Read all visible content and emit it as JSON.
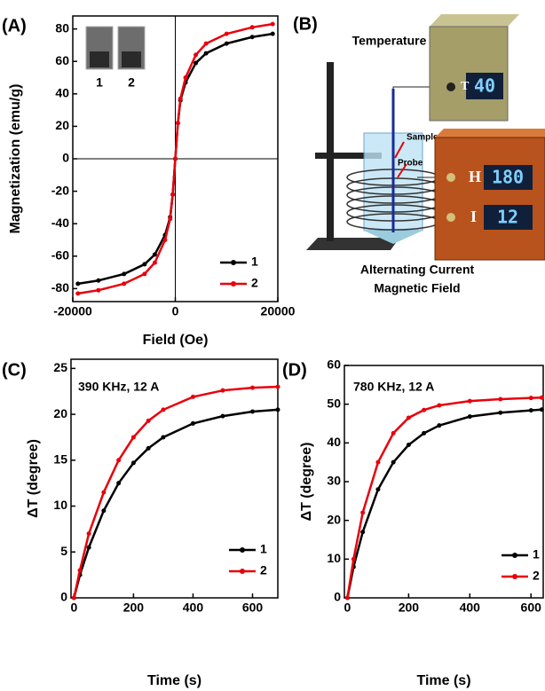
{
  "chart_data": [
    {
      "type": "line",
      "label": "(A)",
      "xlabel": "Field (Oe)",
      "ylabel": "Magnetization (emu/g)",
      "x": [
        -19000,
        -15000,
        -10000,
        -6000,
        -4000,
        -2000,
        -1000,
        -500,
        0,
        500,
        1000,
        2000,
        4000,
        6000,
        10000,
        15000,
        19000
      ],
      "series": [
        {
          "name": "1",
          "color": "#000000",
          "values": [
            -77,
            -75,
            -71,
            -65,
            -59,
            -47,
            -36,
            -22,
            0,
            22,
            36,
            47,
            59,
            65,
            71,
            75,
            77
          ]
        },
        {
          "name": "2",
          "color": "#e8000b",
          "values": [
            -83,
            -81,
            -77,
            -71,
            -64,
            -50,
            -37,
            -22,
            0,
            22,
            37,
            50,
            64,
            71,
            77,
            81,
            83
          ]
        }
      ],
      "xlim": [
        -20000,
        20000
      ],
      "ylim": [
        -88,
        88
      ],
      "xticks": [
        -20000,
        0,
        20000
      ],
      "yticks": [
        -80,
        -60,
        -40,
        -20,
        0,
        20,
        40,
        60,
        80
      ],
      "zero_lines": true,
      "legend": "lower right",
      "inset_labels": [
        "1",
        "2"
      ]
    },
    {
      "type": "line",
      "label": "(C)",
      "xlabel": "Time (s)",
      "ylabel": "ΔT (degree)",
      "annotation": "390 KHz, 12 A",
      "x": [
        0,
        20,
        50,
        100,
        150,
        200,
        250,
        300,
        400,
        500,
        600,
        685
      ],
      "series": [
        {
          "name": "1",
          "color": "#000000",
          "values": [
            0,
            2.5,
            5.5,
            9.5,
            12.5,
            14.7,
            16.3,
            17.5,
            19.0,
            19.8,
            20.3,
            20.5
          ]
        },
        {
          "name": "2",
          "color": "#e8000b",
          "values": [
            0,
            3,
            7,
            11.5,
            15,
            17.5,
            19.3,
            20.5,
            21.9,
            22.6,
            22.9,
            23.0
          ]
        }
      ],
      "xlim": [
        -10,
        685
      ],
      "ylim": [
        0,
        26
      ],
      "xticks": [
        0,
        200,
        400,
        600
      ],
      "yticks": [
        0,
        5,
        10,
        15,
        20,
        25
      ],
      "legend": "lower right"
    },
    {
      "type": "line",
      "label": "(D)",
      "xlabel": "Time (s)",
      "ylabel": "ΔT (degree)",
      "annotation": "780 KHz, 12 A",
      "x": [
        0,
        20,
        50,
        100,
        150,
        200,
        250,
        300,
        400,
        500,
        600,
        635
      ],
      "series": [
        {
          "name": "1",
          "color": "#000000",
          "values": [
            0,
            8,
            17,
            28,
            35,
            39.5,
            42.5,
            44.5,
            46.8,
            47.8,
            48.4,
            48.6
          ]
        },
        {
          "name": "2",
          "color": "#e8000b",
          "values": [
            0,
            10,
            22,
            35,
            42.5,
            46.5,
            48.5,
            49.7,
            50.8,
            51.3,
            51.6,
            51.7
          ]
        }
      ],
      "xlim": [
        -10,
        640
      ],
      "ylim": [
        0,
        60
      ],
      "xticks": [
        0,
        200,
        400,
        600
      ],
      "yticks": [
        0,
        10,
        20,
        30,
        40,
        50,
        60
      ],
      "legend": "lower right"
    }
  ],
  "diagram": {
    "label": "(B)",
    "title": "Temperature Indicator",
    "sample": "Sample",
    "probe": "Probe",
    "displays": [
      {
        "letter": "T",
        "value": "40"
      },
      {
        "letter": "H",
        "value": "180"
      },
      {
        "letter": "I",
        "value": "12"
      }
    ],
    "caption": [
      "Alternating Current",
      "Magnetic Field"
    ]
  }
}
